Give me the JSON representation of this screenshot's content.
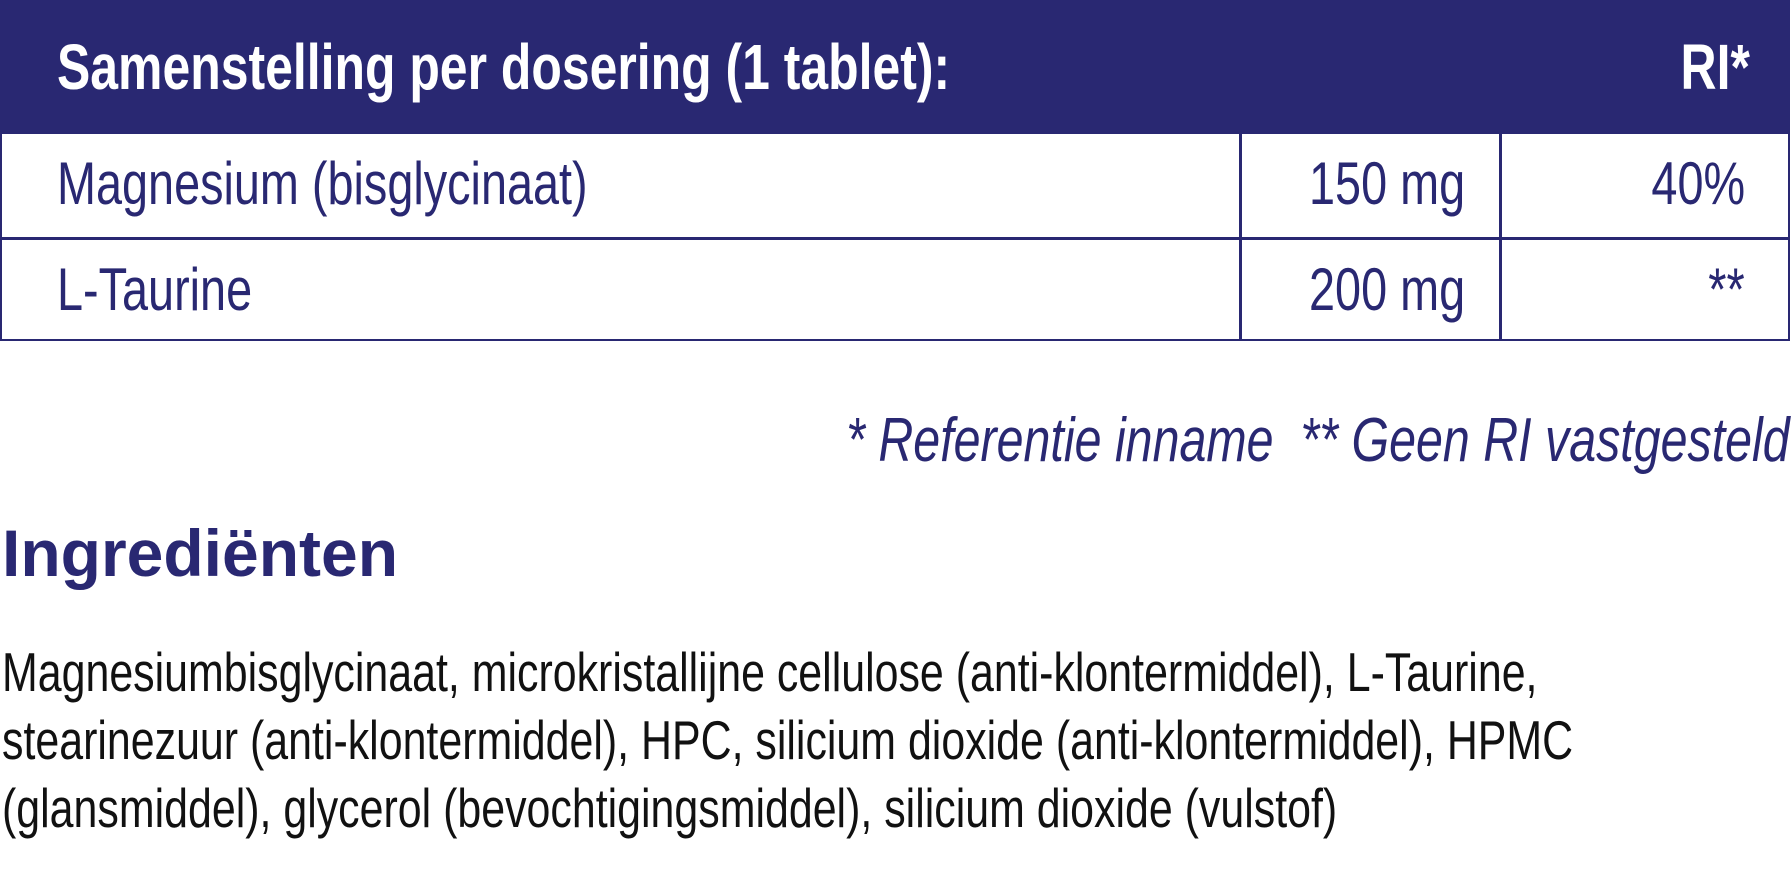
{
  "table": {
    "header": {
      "title": "Samenstelling per dosering (1 tablet):",
      "ri": "RI*"
    },
    "rows": [
      {
        "name": "Magnesium (bisglycinaat)",
        "amount": "150 mg",
        "ri": "40%"
      },
      {
        "name": "L-Taurine",
        "amount": "200 mg",
        "ri": "**"
      }
    ]
  },
  "footnote": "* Referentie inname  ** Geen RI vastgesteld",
  "ingredients": {
    "heading": "Ingrediënten",
    "lines": [
      "Magnesiumbisglycinaat, microkristallijne cellulose (anti-klontermiddel), L-Taurine,",
      "stearinezuur (anti-klontermiddel), HPC, silicium dioxide (anti-klontermiddel), HPMC",
      "(glansmiddel), glycerol (bevochtigingsmiddel), silicium dioxide (vulstof)"
    ]
  },
  "colors": {
    "brand": "#292872",
    "text": "#111111"
  }
}
